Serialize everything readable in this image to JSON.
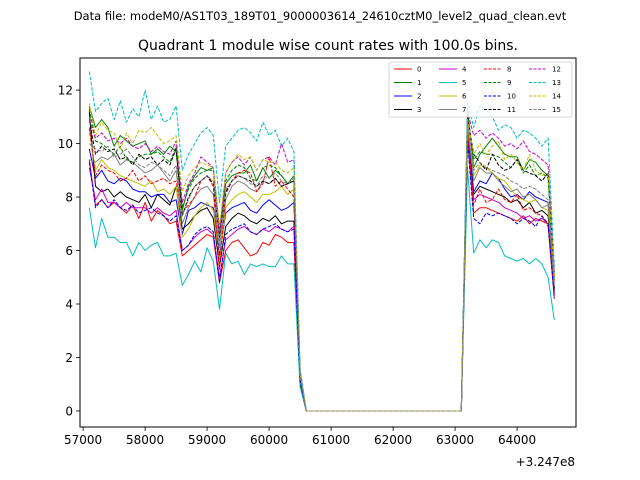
{
  "chart_data": {
    "type": "line",
    "suptitle": "Data file: modeM0/AS1T03_189T01_9000003614_24610cztM0_level2_quad_clean.evt",
    "title": "Quadrant 1 module wise count rates with 100.0s bins.",
    "xlabel": "",
    "ylabel": "",
    "x_offset_label": "+3.247e8",
    "xlim": [
      56950,
      64950
    ],
    "ylim": [
      -0.6,
      13.2
    ],
    "x_ticks": [
      57000,
      58000,
      59000,
      60000,
      61000,
      62000,
      63000,
      64000
    ],
    "x_tick_labels": [
      "57000",
      "58000",
      "59000",
      "60000",
      "61000",
      "62000",
      "63000",
      "64000"
    ],
    "y_ticks": [
      0,
      2,
      4,
      6,
      8,
      10,
      12
    ],
    "y_tick_labels": [
      "0",
      "2",
      "4",
      "6",
      "8",
      "10",
      "12"
    ],
    "legend_position": "upper right",
    "x": [
      57100,
      57200,
      57300,
      57400,
      57500,
      57600,
      57700,
      57800,
      57900,
      58000,
      58100,
      58200,
      58300,
      58400,
      58500,
      58600,
      58700,
      58800,
      58900,
      59000,
      59100,
      59200,
      59300,
      59400,
      59500,
      59600,
      59700,
      59800,
      59900,
      60000,
      60100,
      60200,
      60300,
      60400,
      60500,
      60600,
      60700,
      60800,
      60900,
      61000,
      61100,
      61200,
      61300,
      61400,
      61500,
      61600,
      61700,
      61800,
      61900,
      62000,
      62100,
      62200,
      62300,
      62400,
      62500,
      62600,
      62700,
      62800,
      62900,
      63000,
      63100,
      63200,
      63300,
      63400,
      63500,
      63600,
      63700,
      63800,
      63900,
      64000,
      64100,
      64200,
      64300,
      64400,
      64500,
      64600
    ],
    "gap_range_x": [
      60550,
      63100
    ],
    "series": [
      {
        "name": "0",
        "color": "#ff0000",
        "dash": "solid",
        "segA": [
          9.4,
          7.7,
          7.9,
          7.6,
          7.8,
          7.6,
          7.4,
          7.7,
          7.2,
          7.8,
          7.1,
          7.5,
          7.3,
          7.0,
          7.1,
          5.8,
          6.0,
          6.2,
          6.4,
          6.6,
          6.5,
          4.8,
          6.0,
          6.3,
          6.4,
          6.1,
          5.8,
          5.9,
          6.3,
          6.2,
          6.6,
          6.5,
          6.3,
          6.3,
          1.0
        ],
        "segB": [
          10.2,
          7.4,
          7.6,
          7.6,
          7.5,
          7.4,
          7.3,
          7.2,
          7.1,
          7.3,
          7.0,
          7.2,
          7.1,
          7.0,
          4.4
        ]
      },
      {
        "name": "1",
        "color": "#008000",
        "dash": "solid",
        "segA": [
          11.4,
          10.6,
          10.9,
          10.6,
          9.9,
          10.3,
          10.1,
          9.9,
          10.0,
          10.1,
          9.6,
          9.8,
          9.6,
          9.9,
          9.7,
          7.5,
          8.4,
          8.8,
          9.1,
          9.0,
          9.1,
          6.8,
          8.5,
          8.8,
          8.9,
          8.9,
          9.2,
          8.6,
          9.1,
          8.7,
          9.0,
          8.8,
          8.5,
          8.8,
          1.4
        ],
        "segB": [
          11.3,
          9.1,
          9.6,
          9.9,
          10.2,
          9.9,
          9.6,
          9.5,
          9.5,
          9.0,
          9.4,
          9.3,
          9.0,
          8.8,
          5.1
        ]
      },
      {
        "name": "2",
        "color": "#0000ff",
        "dash": "solid",
        "segA": [
          9.8,
          8.7,
          9.0,
          8.6,
          8.5,
          8.7,
          8.6,
          8.3,
          8.2,
          8.2,
          8.0,
          8.1,
          8.1,
          7.8,
          7.9,
          6.6,
          7.5,
          7.6,
          7.8,
          7.7,
          7.6,
          5.8,
          7.4,
          7.6,
          7.7,
          7.8,
          7.5,
          7.4,
          7.7,
          7.9,
          7.7,
          7.5,
          7.6,
          7.8,
          1.3
        ],
        "segB": [
          10.6,
          8.2,
          8.6,
          8.5,
          8.9,
          8.7,
          8.3,
          8.0,
          8.1,
          7.9,
          8.2,
          8.0,
          7.9,
          7.8,
          4.6
        ]
      },
      {
        "name": "3",
        "color": "#000000",
        "dash": "solid",
        "segA": [
          11.2,
          8.4,
          8.2,
          8.3,
          8.0,
          8.2,
          8.0,
          7.9,
          7.8,
          8.1,
          7.6,
          8.1,
          7.9,
          7.7,
          8.4,
          6.8,
          7.0,
          7.3,
          7.5,
          7.6,
          7.2,
          5.4,
          6.9,
          7.2,
          7.4,
          7.3,
          7.1,
          7.0,
          7.2,
          7.1,
          7.3,
          7.0,
          7.1,
          7.1,
          1.2
        ],
        "segB": [
          10.5,
          8.1,
          8.4,
          8.3,
          8.2,
          8.1,
          8.0,
          7.8,
          7.9,
          7.6,
          7.8,
          7.4,
          7.5,
          7.3,
          4.5
        ]
      },
      {
        "name": "4",
        "color": "#cc00cc",
        "dash": "solid",
        "segA": [
          9.1,
          7.9,
          8.3,
          7.8,
          7.8,
          7.6,
          7.8,
          7.6,
          7.6,
          7.6,
          7.4,
          7.6,
          7.4,
          7.3,
          7.5,
          6.0,
          6.2,
          6.5,
          6.7,
          6.8,
          6.6,
          5.0,
          6.4,
          6.6,
          6.8,
          6.9,
          6.7,
          6.6,
          6.8,
          6.7,
          6.9,
          6.8,
          6.7,
          6.9,
          1.1
        ],
        "segB": [
          10.3,
          7.9,
          8.1,
          8.0,
          7.9,
          7.8,
          7.6,
          7.5,
          7.4,
          7.2,
          7.3,
          7.1,
          7.2,
          7.0,
          4.3
        ]
      },
      {
        "name": "5",
        "color": "#00bfbf",
        "dash": "solid",
        "segA": [
          7.6,
          6.1,
          7.2,
          6.5,
          6.5,
          6.3,
          6.3,
          5.8,
          6.3,
          6.0,
          6.2,
          6.3,
          5.8,
          5.8,
          5.9,
          4.7,
          5.1,
          5.6,
          5.2,
          6.1,
          5.6,
          3.8,
          5.9,
          5.5,
          5.6,
          5.1,
          5.5,
          5.4,
          5.5,
          5.4,
          5.4,
          5.8,
          5.5,
          5.5,
          0.9
        ],
        "segB": [
          9.1,
          5.9,
          6.4,
          6.1,
          6.4,
          6.3,
          5.8,
          5.7,
          5.6,
          5.7,
          5.5,
          5.7,
          5.5,
          5.0,
          3.4
        ]
      },
      {
        "name": "6",
        "color": "#bfbf00",
        "dash": "solid",
        "segA": [
          10.5,
          9.0,
          9.4,
          9.1,
          9.0,
          8.8,
          8.7,
          8.6,
          8.5,
          8.4,
          8.6,
          8.2,
          8.3,
          8.1,
          8.4,
          6.5,
          6.8,
          7.3,
          7.6,
          7.8,
          7.5,
          5.6,
          7.6,
          7.9,
          8.1,
          8.2,
          8.0,
          7.8,
          8.1,
          8.1,
          8.2,
          8.4,
          8.1,
          8.3,
          1.3
        ],
        "segB": [
          10.6,
          8.8,
          9.2,
          9.1,
          8.9,
          8.7,
          8.6,
          8.3,
          8.0,
          7.9,
          7.8,
          7.9,
          7.6,
          7.5,
          4.8
        ]
      },
      {
        "name": "7",
        "color": "#808080",
        "dash": "solid",
        "segA": [
          9.4,
          9.3,
          9.5,
          9.4,
          9.6,
          9.2,
          9.4,
          9.3,
          9.1,
          8.9,
          9.0,
          9.2,
          8.9,
          8.6,
          9.0,
          7.0,
          7.6,
          8.0,
          8.3,
          8.4,
          8.1,
          6.1,
          7.9,
          8.4,
          8.6,
          8.5,
          8.3,
          8.2,
          8.6,
          8.5,
          8.7,
          8.4,
          8.5,
          8.6,
          1.3
        ],
        "segB": [
          10.7,
          8.6,
          9.1,
          8.9,
          8.9,
          8.6,
          8.4,
          8.2,
          8.3,
          8.0,
          8.1,
          7.9,
          7.6,
          7.7,
          4.7
        ]
      },
      {
        "name": "8",
        "color": "#ff0000",
        "dash": "dashed",
        "segA": [
          10.6,
          8.8,
          9.2,
          9.0,
          8.9,
          8.6,
          8.7,
          9.0,
          8.6,
          8.8,
          8.5,
          8.6,
          8.7,
          8.5,
          8.6,
          7.4,
          7.7,
          8.0,
          8.6,
          8.8,
          8.4,
          5.3,
          8.1,
          8.6,
          8.9,
          9.0,
          8.9,
          8.2,
          8.5,
          9.5,
          8.4,
          8.6,
          8.3,
          8.0,
          1.3
        ],
        "segB": [
          10.4,
          7.7,
          8.3,
          7.8,
          7.9,
          8.3,
          7.9,
          7.8,
          8.1,
          7.5,
          7.6,
          7.4,
          7.3,
          6.9,
          4.2
        ]
      },
      {
        "name": "9",
        "color": "#008000",
        "dash": "dashed",
        "segA": [
          11.3,
          10.1,
          10.0,
          9.8,
          9.6,
          9.9,
          9.4,
          9.3,
          9.5,
          9.6,
          9.6,
          9.7,
          9.5,
          9.3,
          9.9,
          7.6,
          8.3,
          8.7,
          8.9,
          9.0,
          9.0,
          6.6,
          8.6,
          9.0,
          9.2,
          9.1,
          8.7,
          8.6,
          9.1,
          9.2,
          9.1,
          8.8,
          8.5,
          8.6,
          1.4
        ],
        "segB": [
          11.0,
          9.4,
          9.7,
          9.6,
          9.6,
          9.5,
          9.3,
          9.1,
          9.4,
          8.9,
          9.2,
          8.8,
          8.9,
          8.7,
          4.9
        ]
      },
      {
        "name": "10",
        "color": "#0000ff",
        "dash": "dashed",
        "segA": [
          9.3,
          7.6,
          7.9,
          7.6,
          7.9,
          7.6,
          7.5,
          7.7,
          7.4,
          7.5,
          7.6,
          7.4,
          7.3,
          7.1,
          7.3,
          6.0,
          6.2,
          6.6,
          6.8,
          6.9,
          6.7,
          4.8,
          6.6,
          6.8,
          6.9,
          7.0,
          6.7,
          6.6,
          6.8,
          6.9,
          7.0,
          6.8,
          6.7,
          6.8,
          1.1
        ],
        "segB": [
          10.1,
          7.2,
          7.0,
          7.4,
          7.3,
          7.4,
          7.3,
          7.2,
          7.0,
          7.2,
          7.1,
          6.9,
          7.3,
          7.0,
          4.2
        ]
      },
      {
        "name": "11",
        "color": "#000000",
        "dash": "dashed",
        "segA": [
          10.9,
          9.6,
          9.9,
          9.7,
          9.8,
          9.4,
          9.5,
          9.2,
          9.6,
          9.4,
          9.5,
          9.2,
          9.4,
          9.2,
          9.8,
          7.3,
          8.0,
          8.4,
          8.6,
          8.8,
          8.5,
          6.5,
          8.2,
          8.6,
          8.8,
          8.7,
          8.6,
          8.4,
          8.6,
          8.5,
          8.7,
          8.4,
          8.5,
          8.6,
          1.3
        ],
        "segB": [
          11.0,
          9.6,
          9.3,
          9.0,
          9.6,
          9.2,
          9.0,
          9.1,
          9.4,
          9.0,
          8.9,
          8.8,
          8.6,
          8.9,
          5.0
        ]
      },
      {
        "name": "12",
        "color": "#cc00cc",
        "dash": "dashed",
        "segA": [
          10.9,
          10.2,
          10.4,
          10.1,
          10.2,
          10.0,
          10.2,
          9.9,
          9.8,
          10.0,
          9.7,
          9.9,
          9.7,
          9.6,
          10.1,
          7.8,
          8.5,
          8.9,
          9.5,
          9.3,
          9.1,
          6.7,
          8.9,
          9.3,
          9.5,
          9.2,
          9.5,
          9.0,
          9.4,
          9.5,
          9.2,
          10.0,
          9.3,
          9.4,
          1.5
        ],
        "segB": [
          11.2,
          10.3,
          10.5,
          10.2,
          10.4,
          10.2,
          9.9,
          10.0,
          9.8,
          10.1,
          9.7,
          9.6,
          9.4,
          9.2,
          5.2
        ]
      },
      {
        "name": "13",
        "color": "#00bfbf",
        "dash": "dashed",
        "segA": [
          12.7,
          11.2,
          11.5,
          11.7,
          10.9,
          11.6,
          10.8,
          11.3,
          11.0,
          12.0,
          10.9,
          11.4,
          10.8,
          10.9,
          11.4,
          9.0,
          9.6,
          10.0,
          10.4,
          10.6,
          10.3,
          7.8,
          9.9,
          10.2,
          10.5,
          10.6,
          10.4,
          10.1,
          10.8,
          10.3,
          10.5,
          9.9,
          10.2,
          9.7,
          1.6
        ],
        "segB": [
          11.6,
          10.6,
          11.4,
          11.3,
          11.0,
          10.5,
          10.7,
          10.6,
          10.2,
          10.5,
          10.4,
          10.2,
          9.9,
          10.2,
          5.4
        ]
      },
      {
        "name": "14",
        "color": "#bfbf00",
        "dash": "dashed",
        "segA": [
          11.5,
          10.3,
          10.8,
          10.5,
          10.4,
          9.8,
          10.4,
          10.0,
          10.5,
          10.4,
          10.6,
          10.3,
          10.0,
          10.1,
          10.3,
          8.2,
          8.8,
          9.1,
          9.3,
          9.2,
          9.1,
          6.9,
          8.9,
          9.3,
          9.6,
          9.4,
          9.5,
          9.0,
          9.4,
          9.3,
          9.3,
          9.0,
          8.9,
          9.1,
          1.4
        ],
        "segB": [
          10.9,
          9.6,
          10.0,
          9.6,
          9.9,
          10.1,
          9.4,
          9.6,
          9.3,
          9.0,
          9.6,
          9.0,
          8.8,
          8.9,
          5.0
        ]
      },
      {
        "name": "15",
        "color": "#808080",
        "dash": "dashed",
        "segA": [
          10.0,
          9.8,
          9.7,
          9.9,
          9.5,
          9.6,
          9.8,
          9.5,
          9.2,
          9.1,
          9.3,
          9.2,
          9.0,
          8.8,
          9.2,
          7.3,
          7.9,
          8.4,
          8.6,
          8.8,
          8.6,
          6.3,
          8.3,
          8.6,
          8.8,
          8.7,
          8.5,
          8.4,
          8.8,
          8.7,
          8.9,
          8.6,
          8.5,
          8.7,
          1.3
        ],
        "segB": [
          10.8,
          9.0,
          9.3,
          9.1,
          9.0,
          8.9,
          8.8,
          8.6,
          8.5,
          8.3,
          8.4,
          8.3,
          8.1,
          7.9,
          4.8
        ]
      }
    ]
  }
}
